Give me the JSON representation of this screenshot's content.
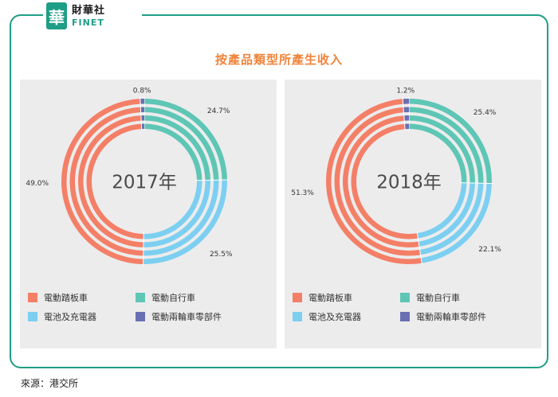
{
  "logo": {
    "mark": "華",
    "name_zh": "財華社",
    "name_en": "FINET"
  },
  "title": "按產品類型所產生收入",
  "colors": {
    "scooter": "#f47f67",
    "bicycle": "#5ec6b5",
    "battery": "#7ccff1",
    "parts": "#6a6fb4",
    "brand": "#1f9e86",
    "title": "#f0833a"
  },
  "chart_data": [
    {
      "type": "pie",
      "center_label": "2017年",
      "categories": [
        "電動踏板車",
        "電動自行車",
        "電池及充電器",
        "電動兩輪車零部件"
      ],
      "values": [
        49.0,
        24.7,
        25.5,
        0.8
      ],
      "value_labels": [
        "49.0%",
        "24.7%",
        "25.5%",
        "0.8%"
      ],
      "unit": "%"
    },
    {
      "type": "pie",
      "center_label": "2018年",
      "categories": [
        "電動踏板車",
        "電動自行車",
        "電池及充電器",
        "電動兩輪車零部件"
      ],
      "values": [
        51.3,
        25.4,
        22.1,
        1.2
      ],
      "value_labels": [
        "51.3%",
        "25.4%",
        "22.1%",
        "1.2%"
      ],
      "unit": "%"
    }
  ],
  "legend": [
    "電動踏板車",
    "電動自行車",
    "電池及充電器",
    "電動兩輪車零部件"
  ],
  "source": "來源：港交所"
}
